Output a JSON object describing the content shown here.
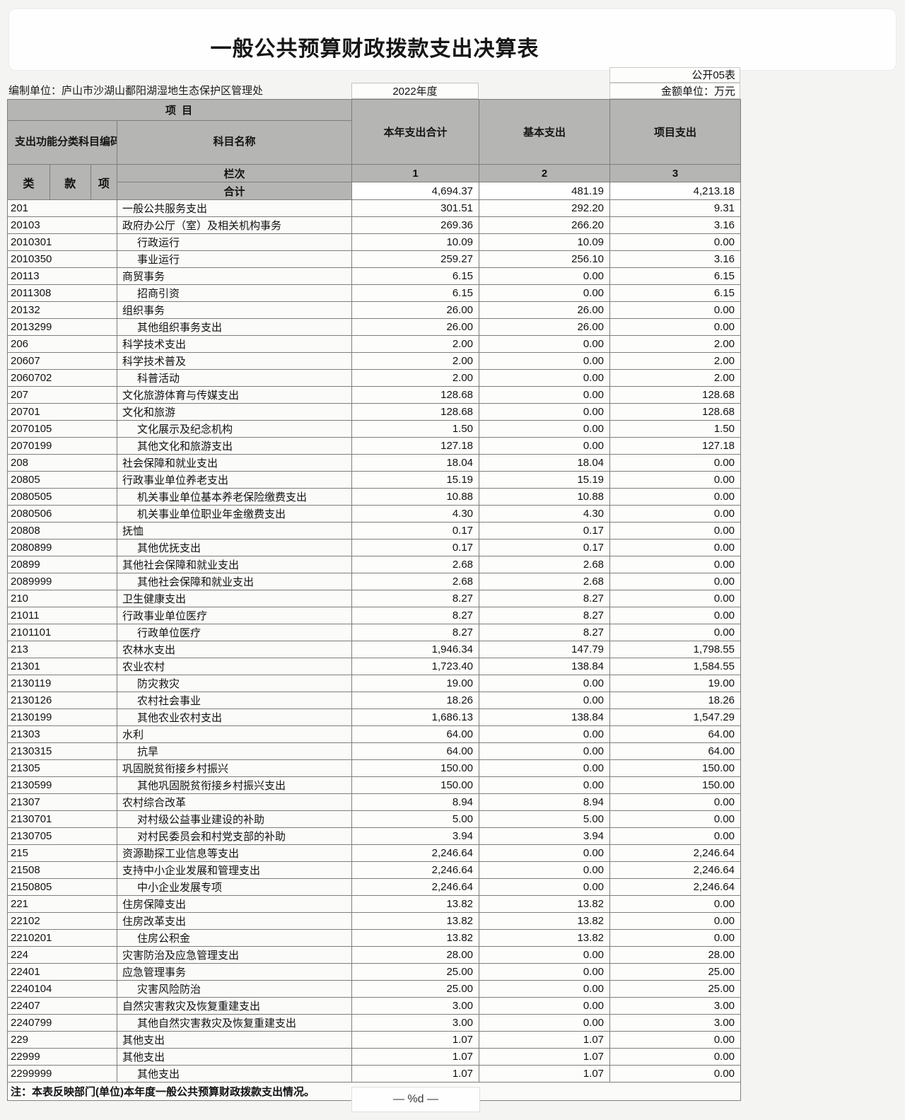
{
  "page": {
    "title": "一般公共预算财政拨款支出决算表",
    "form_no": "公开05表",
    "prepared_by": "编制单位：庐山市沙湖山鄱阳湖湿地生态保护区管理处",
    "year": "2022年度",
    "unit": "金额单位：万元",
    "note": "注：本表反映部门(单位)本年度一般公共预算财政拨款支出情况。",
    "page_footer": "— %d —"
  },
  "colors": {
    "header_bg": "#b5b5b3",
    "cell_border": "#7e7e7c",
    "paper": "#fdfdfc"
  },
  "table": {
    "header": {
      "project": "项  目",
      "code": "支出功能分类科目编码",
      "subject_name": "科目名称",
      "col_total": "本年支出合计",
      "col_basic": "基本支出",
      "col_project": "项目支出",
      "sub_class": "类",
      "sub_section": "款",
      "sub_item": "项",
      "lanci": "栏次",
      "col_nums": [
        "1",
        "2",
        "3"
      ],
      "total_label": "合计"
    },
    "total": [
      "4,694.37",
      "481.19",
      "4,213.18"
    ],
    "rows": [
      {
        "code": "201",
        "name": "一般公共服务支出",
        "indent": false,
        "values": [
          "301.51",
          "292.20",
          "9.31"
        ]
      },
      {
        "code": "20103",
        "name": "政府办公厅（室）及相关机构事务",
        "indent": false,
        "values": [
          "269.36",
          "266.20",
          "3.16"
        ]
      },
      {
        "code": "2010301",
        "name": "行政运行",
        "indent": true,
        "values": [
          "10.09",
          "10.09",
          "0.00"
        ]
      },
      {
        "code": "2010350",
        "name": "事业运行",
        "indent": true,
        "values": [
          "259.27",
          "256.10",
          "3.16"
        ]
      },
      {
        "code": "20113",
        "name": "商贸事务",
        "indent": false,
        "values": [
          "6.15",
          "0.00",
          "6.15"
        ]
      },
      {
        "code": "2011308",
        "name": "招商引资",
        "indent": true,
        "values": [
          "6.15",
          "0.00",
          "6.15"
        ]
      },
      {
        "code": "20132",
        "name": "组织事务",
        "indent": false,
        "values": [
          "26.00",
          "26.00",
          "0.00"
        ]
      },
      {
        "code": "2013299",
        "name": "其他组织事务支出",
        "indent": true,
        "values": [
          "26.00",
          "26.00",
          "0.00"
        ]
      },
      {
        "code": "206",
        "name": "科学技术支出",
        "indent": false,
        "values": [
          "2.00",
          "0.00",
          "2.00"
        ]
      },
      {
        "code": "20607",
        "name": "科学技术普及",
        "indent": false,
        "values": [
          "2.00",
          "0.00",
          "2.00"
        ]
      },
      {
        "code": "2060702",
        "name": "科普活动",
        "indent": true,
        "values": [
          "2.00",
          "0.00",
          "2.00"
        ]
      },
      {
        "code": "207",
        "name": "文化旅游体育与传媒支出",
        "indent": false,
        "values": [
          "128.68",
          "0.00",
          "128.68"
        ]
      },
      {
        "code": "20701",
        "name": "文化和旅游",
        "indent": false,
        "values": [
          "128.68",
          "0.00",
          "128.68"
        ]
      },
      {
        "code": "2070105",
        "name": "文化展示及纪念机构",
        "indent": true,
        "values": [
          "1.50",
          "0.00",
          "1.50"
        ]
      },
      {
        "code": "2070199",
        "name": "其他文化和旅游支出",
        "indent": true,
        "values": [
          "127.18",
          "0.00",
          "127.18"
        ]
      },
      {
        "code": "208",
        "name": "社会保障和就业支出",
        "indent": false,
        "values": [
          "18.04",
          "18.04",
          "0.00"
        ]
      },
      {
        "code": "20805",
        "name": "行政事业单位养老支出",
        "indent": false,
        "values": [
          "15.19",
          "15.19",
          "0.00"
        ]
      },
      {
        "code": "2080505",
        "name": "机关事业单位基本养老保险缴费支出",
        "indent": true,
        "values": [
          "10.88",
          "10.88",
          "0.00"
        ]
      },
      {
        "code": "2080506",
        "name": "机关事业单位职业年金缴费支出",
        "indent": true,
        "values": [
          "4.30",
          "4.30",
          "0.00"
        ]
      },
      {
        "code": "20808",
        "name": "抚恤",
        "indent": false,
        "values": [
          "0.17",
          "0.17",
          "0.00"
        ]
      },
      {
        "code": "2080899",
        "name": "其他优抚支出",
        "indent": true,
        "values": [
          "0.17",
          "0.17",
          "0.00"
        ]
      },
      {
        "code": "20899",
        "name": "其他社会保障和就业支出",
        "indent": false,
        "values": [
          "2.68",
          "2.68",
          "0.00"
        ]
      },
      {
        "code": "2089999",
        "name": "其他社会保障和就业支出",
        "indent": true,
        "values": [
          "2.68",
          "2.68",
          "0.00"
        ]
      },
      {
        "code": "210",
        "name": "卫生健康支出",
        "indent": false,
        "values": [
          "8.27",
          "8.27",
          "0.00"
        ]
      },
      {
        "code": "21011",
        "name": "行政事业单位医疗",
        "indent": false,
        "values": [
          "8.27",
          "8.27",
          "0.00"
        ]
      },
      {
        "code": "2101101",
        "name": "行政单位医疗",
        "indent": true,
        "values": [
          "8.27",
          "8.27",
          "0.00"
        ]
      },
      {
        "code": "213",
        "name": "农林水支出",
        "indent": false,
        "values": [
          "1,946.34",
          "147.79",
          "1,798.55"
        ]
      },
      {
        "code": "21301",
        "name": "农业农村",
        "indent": false,
        "values": [
          "1,723.40",
          "138.84",
          "1,584.55"
        ]
      },
      {
        "code": "2130119",
        "name": "防灾救灾",
        "indent": true,
        "values": [
          "19.00",
          "0.00",
          "19.00"
        ]
      },
      {
        "code": "2130126",
        "name": "农村社会事业",
        "indent": true,
        "values": [
          "18.26",
          "0.00",
          "18.26"
        ]
      },
      {
        "code": "2130199",
        "name": "其他农业农村支出",
        "indent": true,
        "values": [
          "1,686.13",
          "138.84",
          "1,547.29"
        ]
      },
      {
        "code": "21303",
        "name": "水利",
        "indent": false,
        "values": [
          "64.00",
          "0.00",
          "64.00"
        ]
      },
      {
        "code": "2130315",
        "name": "抗旱",
        "indent": true,
        "values": [
          "64.00",
          "0.00",
          "64.00"
        ]
      },
      {
        "code": "21305",
        "name": "巩固脱贫衔接乡村振兴",
        "indent": false,
        "values": [
          "150.00",
          "0.00",
          "150.00"
        ]
      },
      {
        "code": "2130599",
        "name": "其他巩固脱贫衔接乡村振兴支出",
        "indent": true,
        "values": [
          "150.00",
          "0.00",
          "150.00"
        ]
      },
      {
        "code": "21307",
        "name": "农村综合改革",
        "indent": false,
        "values": [
          "8.94",
          "8.94",
          "0.00"
        ]
      },
      {
        "code": "2130701",
        "name": "对村级公益事业建设的补助",
        "indent": true,
        "values": [
          "5.00",
          "5.00",
          "0.00"
        ]
      },
      {
        "code": "2130705",
        "name": "对村民委员会和村党支部的补助",
        "indent": true,
        "values": [
          "3.94",
          "3.94",
          "0.00"
        ]
      },
      {
        "code": "215",
        "name": "资源勘探工业信息等支出",
        "indent": false,
        "values": [
          "2,246.64",
          "0.00",
          "2,246.64"
        ]
      },
      {
        "code": "21508",
        "name": "支持中小企业发展和管理支出",
        "indent": false,
        "values": [
          "2,246.64",
          "0.00",
          "2,246.64"
        ]
      },
      {
        "code": "2150805",
        "name": "中小企业发展专项",
        "indent": true,
        "values": [
          "2,246.64",
          "0.00",
          "2,246.64"
        ]
      },
      {
        "code": "221",
        "name": "住房保障支出",
        "indent": false,
        "values": [
          "13.82",
          "13.82",
          "0.00"
        ]
      },
      {
        "code": "22102",
        "name": "住房改革支出",
        "indent": false,
        "values": [
          "13.82",
          "13.82",
          "0.00"
        ]
      },
      {
        "code": "2210201",
        "name": "住房公积金",
        "indent": true,
        "values": [
          "13.82",
          "13.82",
          "0.00"
        ]
      },
      {
        "code": "224",
        "name": "灾害防治及应急管理支出",
        "indent": false,
        "values": [
          "28.00",
          "0.00",
          "28.00"
        ]
      },
      {
        "code": "22401",
        "name": "应急管理事务",
        "indent": false,
        "values": [
          "25.00",
          "0.00",
          "25.00"
        ]
      },
      {
        "code": "2240104",
        "name": "灾害风险防治",
        "indent": true,
        "values": [
          "25.00",
          "0.00",
          "25.00"
        ]
      },
      {
        "code": "22407",
        "name": "自然灾害救灾及恢复重建支出",
        "indent": false,
        "values": [
          "3.00",
          "0.00",
          "3.00"
        ]
      },
      {
        "code": "2240799",
        "name": "其他自然灾害救灾及恢复重建支出",
        "indent": true,
        "values": [
          "3.00",
          "0.00",
          "3.00"
        ]
      },
      {
        "code": "229",
        "name": "其他支出",
        "indent": false,
        "values": [
          "1.07",
          "1.07",
          "0.00"
        ]
      },
      {
        "code": "22999",
        "name": "其他支出",
        "indent": false,
        "values": [
          "1.07",
          "1.07",
          "0.00"
        ]
      },
      {
        "code": "2299999",
        "name": "其他支出",
        "indent": true,
        "values": [
          "1.07",
          "1.07",
          "0.00"
        ]
      }
    ]
  }
}
